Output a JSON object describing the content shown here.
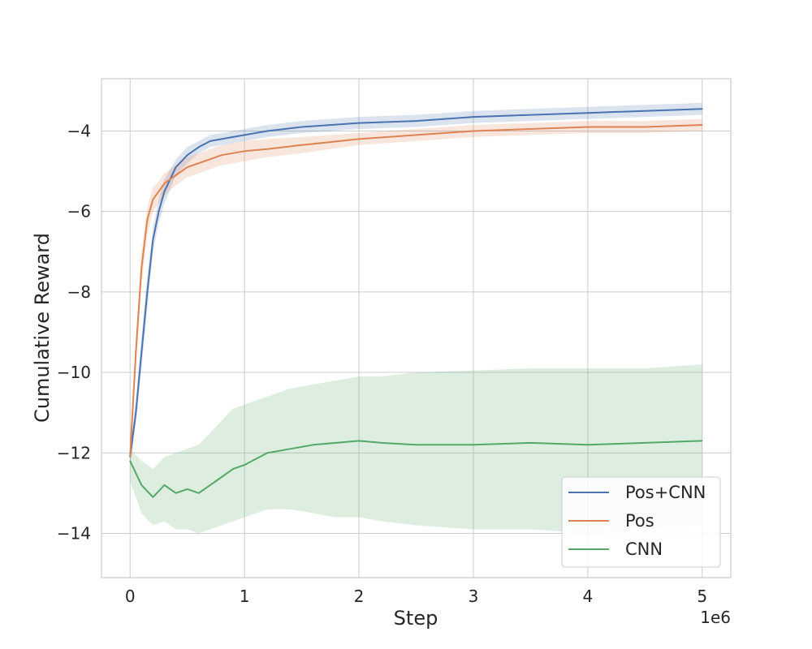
{
  "chart_data": {
    "type": "line",
    "xlabel": "Step",
    "ylabel": "Cumulative Reward",
    "x_offset_label": "1e6",
    "xlim": [
      -250000,
      5250000
    ],
    "ylim": [
      -15.1,
      -2.7
    ],
    "x_ticks": [
      0,
      1000000,
      2000000,
      3000000,
      4000000,
      5000000
    ],
    "x_tick_labels": [
      "0",
      "1",
      "2",
      "3",
      "4",
      "5"
    ],
    "y_ticks": [
      -14,
      -12,
      -10,
      -8,
      -6,
      -4
    ],
    "y_tick_labels": [
      "−14",
      "−12",
      "−10",
      "−8",
      "−6",
      "−4"
    ],
    "grid": true,
    "legend_position": "lower-right",
    "series": [
      {
        "name": "Pos+CNN",
        "color": "#4c72b0",
        "x": [
          0,
          50000,
          100000,
          150000,
          200000,
          250000,
          300000,
          400000,
          500000,
          600000,
          700000,
          800000,
          1000000,
          1200000,
          1500000,
          2000000,
          2500000,
          3000000,
          3500000,
          4000000,
          4500000,
          5000000
        ],
        "y": [
          -12.1,
          -11.0,
          -9.5,
          -8.0,
          -6.7,
          -6.0,
          -5.5,
          -4.9,
          -4.6,
          -4.4,
          -4.25,
          -4.2,
          -4.1,
          -4.0,
          -3.9,
          -3.8,
          -3.75,
          -3.65,
          -3.6,
          -3.55,
          -3.5,
          -3.45
        ],
        "lower": [
          -12.3,
          -11.3,
          -9.9,
          -8.4,
          -7.0,
          -6.3,
          -5.8,
          -5.1,
          -4.8,
          -4.55,
          -4.4,
          -4.35,
          -4.25,
          -4.15,
          -4.05,
          -3.95,
          -3.9,
          -3.8,
          -3.75,
          -3.7,
          -3.65,
          -3.6
        ],
        "upper": [
          -11.9,
          -10.7,
          -9.1,
          -7.6,
          -6.4,
          -5.7,
          -5.2,
          -4.7,
          -4.4,
          -4.25,
          -4.1,
          -4.05,
          -3.95,
          -3.85,
          -3.75,
          -3.65,
          -3.6,
          -3.5,
          -3.45,
          -3.4,
          -3.35,
          -3.3
        ]
      },
      {
        "name": "Pos",
        "color": "#dd8452",
        "x": [
          0,
          50000,
          100000,
          150000,
          200000,
          250000,
          300000,
          400000,
          500000,
          600000,
          700000,
          800000,
          1000000,
          1200000,
          1500000,
          2000000,
          2500000,
          3000000,
          3500000,
          4000000,
          4500000,
          5000000
        ],
        "y": [
          -12.1,
          -9.5,
          -7.4,
          -6.2,
          -5.7,
          -5.5,
          -5.3,
          -5.1,
          -4.9,
          -4.8,
          -4.7,
          -4.6,
          -4.5,
          -4.45,
          -4.35,
          -4.2,
          -4.1,
          -4.0,
          -3.95,
          -3.9,
          -3.9,
          -3.85
        ],
        "lower": [
          -12.4,
          -9.9,
          -7.8,
          -6.6,
          -6.0,
          -5.8,
          -5.6,
          -5.35,
          -5.15,
          -5.05,
          -4.95,
          -4.85,
          -4.75,
          -4.65,
          -4.55,
          -4.35,
          -4.25,
          -4.15,
          -4.1,
          -4.05,
          -4.05,
          -4.0
        ],
        "upper": [
          -11.8,
          -9.1,
          -7.0,
          -5.9,
          -5.4,
          -5.25,
          -5.05,
          -4.85,
          -4.65,
          -4.55,
          -4.45,
          -4.35,
          -4.25,
          -4.2,
          -4.15,
          -4.05,
          -3.95,
          -3.85,
          -3.8,
          -3.75,
          -3.75,
          -3.7
        ]
      },
      {
        "name": "CNN",
        "color": "#55a868",
        "x": [
          0,
          100000,
          200000,
          300000,
          400000,
          500000,
          600000,
          700000,
          800000,
          900000,
          1000000,
          1200000,
          1400000,
          1600000,
          1800000,
          2000000,
          2200000,
          2500000,
          3000000,
          3500000,
          4000000,
          4500000,
          5000000
        ],
        "y": [
          -12.2,
          -12.8,
          -13.1,
          -12.8,
          -13.0,
          -12.9,
          -13.0,
          -12.8,
          -12.6,
          -12.4,
          -12.3,
          -12.0,
          -11.9,
          -11.8,
          -11.75,
          -11.7,
          -11.75,
          -11.8,
          -11.8,
          -11.75,
          -11.8,
          -11.75,
          -11.7
        ],
        "lower": [
          -12.7,
          -13.5,
          -13.8,
          -13.7,
          -13.9,
          -13.9,
          -14.0,
          -13.9,
          -13.8,
          -13.7,
          -13.6,
          -13.4,
          -13.4,
          -13.5,
          -13.6,
          -13.6,
          -13.7,
          -13.8,
          -13.9,
          -13.9,
          -14.0,
          -13.9,
          -13.8
        ],
        "upper": [
          -11.9,
          -12.2,
          -12.4,
          -12.1,
          -12.0,
          -11.9,
          -11.8,
          -11.5,
          -11.2,
          -10.9,
          -10.8,
          -10.6,
          -10.4,
          -10.3,
          -10.2,
          -10.1,
          -10.1,
          -10.0,
          -9.95,
          -9.9,
          -9.9,
          -9.9,
          -9.8
        ]
      }
    ]
  }
}
